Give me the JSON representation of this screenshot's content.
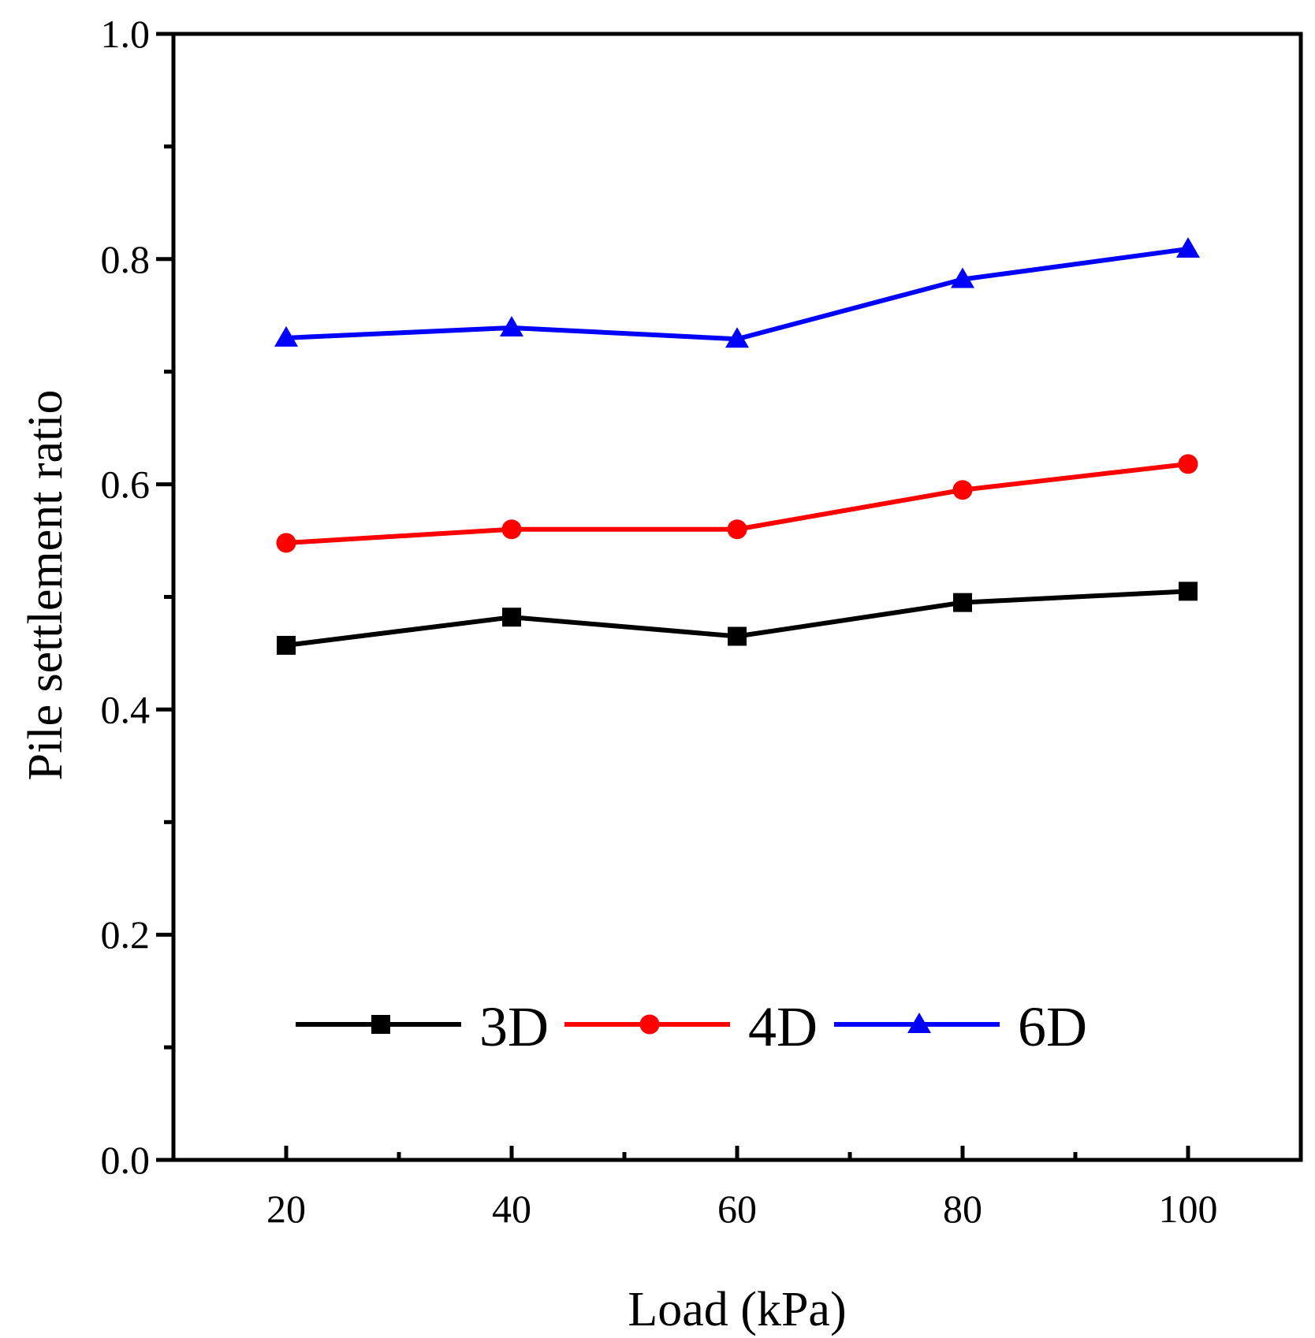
{
  "chart_data": {
    "type": "line",
    "title": "",
    "xlabel": "Load (kPa)",
    "ylabel": "Pile settlement ratio",
    "x": [
      20,
      40,
      60,
      80,
      100
    ],
    "xlim": [
      10,
      110
    ],
    "ylim": [
      0.0,
      1.0
    ],
    "xticks": [
      20,
      40,
      60,
      80,
      100
    ],
    "xtick_labels": [
      "20",
      "40",
      "60",
      "80",
      "100"
    ],
    "x_minor_ticks": [
      30,
      50,
      70,
      90
    ],
    "yticks": [
      0.0,
      0.2,
      0.4,
      0.6,
      0.8,
      1.0
    ],
    "ytick_labels": [
      "0.0",
      "0.2",
      "0.4",
      "0.6",
      "0.8",
      "1.0"
    ],
    "y_minor_ticks": [
      0.1,
      0.3,
      0.5,
      0.7,
      0.9
    ],
    "grid": false,
    "legend_position": "bottom",
    "series": [
      {
        "name": "3D",
        "color": "#000000",
        "marker": "square",
        "values": [
          0.457,
          0.482,
          0.465,
          0.495,
          0.505
        ]
      },
      {
        "name": "4D",
        "color": "#ff0000",
        "marker": "circle",
        "values": [
          0.548,
          0.56,
          0.56,
          0.595,
          0.618
        ]
      },
      {
        "name": "6D",
        "color": "#0000ff",
        "marker": "triangle",
        "values": [
          0.73,
          0.739,
          0.729,
          0.782,
          0.809
        ]
      }
    ]
  }
}
